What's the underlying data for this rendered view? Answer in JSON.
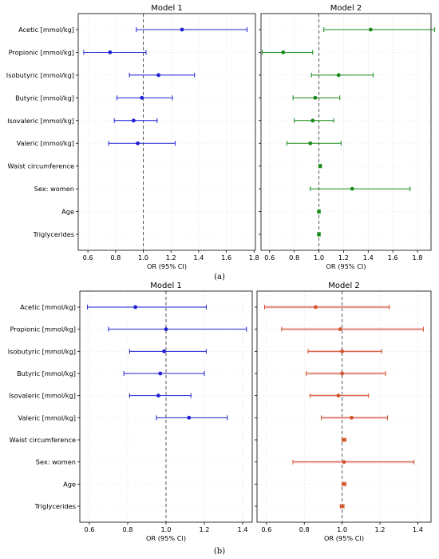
{
  "figure": {
    "caption_a": "(a)",
    "caption_b": "(b)"
  },
  "chart_data": [
    {
      "id": "a1",
      "type": "forest",
      "title": "Model 1",
      "xlabel": "OR (95% CI)",
      "xlim": [
        0.53,
        1.81
      ],
      "xticks": [
        0.6,
        0.8,
        1.0,
        1.2,
        1.4,
        1.6,
        1.8
      ],
      "tick_labels": [
        "0.6",
        "0.8",
        "1.0",
        "1.2",
        "1.4",
        "1.6",
        "1.8"
      ],
      "reference_line": 1.0,
      "color": "#1f1fd6",
      "show_y_labels": true,
      "categories": [
        "Acetic [mmol/kg]",
        "Propionic [mmol/kg]",
        "Isobutyric [mmol/kg]",
        "Butyric [mmol/kg]",
        "Isovaleric [mmol/kg]",
        "Valeric [mmol/kg]",
        "Waist circumference",
        "Sex: women",
        "Age",
        "Triglycerides"
      ],
      "points": [
        {
          "or": 1.28,
          "lo": 0.95,
          "hi": 1.75
        },
        {
          "or": 0.76,
          "lo": 0.57,
          "hi": 1.02
        },
        {
          "or": 1.11,
          "lo": 0.9,
          "hi": 1.37
        },
        {
          "or": 0.99,
          "lo": 0.81,
          "hi": 1.21
        },
        {
          "or": 0.93,
          "lo": 0.79,
          "hi": 1.1
        },
        {
          "or": 0.96,
          "lo": 0.75,
          "hi": 1.23
        },
        null,
        null,
        null,
        null
      ]
    },
    {
      "id": "a2",
      "type": "forest",
      "title": "Model 2",
      "xlabel": "OR (95% CI)",
      "xlim": [
        0.53,
        1.91
      ],
      "xticks": [
        0.6,
        0.8,
        1.0,
        1.2,
        1.4,
        1.6,
        1.8
      ],
      "tick_labels": [
        "0.6",
        "0.8",
        "1.0",
        "1.2",
        "1.4",
        "1.6",
        "1.8"
      ],
      "reference_line": 1.0,
      "color": "#178a17",
      "show_y_labels": false,
      "categories": [
        "Acetic [mmol/kg]",
        "Propionic [mmol/kg]",
        "Isobutyric [mmol/kg]",
        "Butyric [mmol/kg]",
        "Isovaleric [mmol/kg]",
        "Valeric [mmol/kg]",
        "Waist circumference",
        "Sex: women",
        "Age",
        "Triglycerides"
      ],
      "points": [
        {
          "or": 1.42,
          "lo": 1.04,
          "hi": 1.94
        },
        {
          "or": 0.71,
          "lo": 0.54,
          "hi": 0.95
        },
        {
          "or": 1.16,
          "lo": 0.94,
          "hi": 1.44
        },
        {
          "or": 0.97,
          "lo": 0.79,
          "hi": 1.17
        },
        {
          "or": 0.95,
          "lo": 0.8,
          "hi": 1.12
        },
        {
          "or": 0.93,
          "lo": 0.74,
          "hi": 1.18
        },
        {
          "or": 1.01,
          "lo": 1.0,
          "hi": 1.02
        },
        {
          "or": 1.27,
          "lo": 0.93,
          "hi": 1.74
        },
        {
          "or": 1.0,
          "lo": 0.99,
          "hi": 1.01
        },
        {
          "or": 1.0,
          "lo": 0.99,
          "hi": 1.01
        }
      ]
    },
    {
      "id": "b1",
      "type": "forest",
      "title": "Model 1",
      "xlabel": "OR (95% CI)",
      "xlim": [
        0.55,
        1.45
      ],
      "xticks": [
        0.6,
        0.8,
        1.0,
        1.2,
        1.4
      ],
      "tick_labels": [
        "0.6",
        "0.8",
        "1.0",
        "1.2",
        "1.4"
      ],
      "reference_line": 1.0,
      "color": "#1f1fd6",
      "show_y_labels": true,
      "categories": [
        "Acetic [mmol/kg]",
        "Propionic [mmol/kg]",
        "Isobutyric [mmol/kg]",
        "Butyric [mmol/kg]",
        "Isovaleric [mmol/kg]",
        "Valeric [mmol/kg]",
        "Waist circumference",
        "Sex: women",
        "Age",
        "Triglycerides"
      ],
      "points": [
        {
          "or": 0.84,
          "lo": 0.59,
          "hi": 1.21
        },
        {
          "or": 1.0,
          "lo": 0.7,
          "hi": 1.42
        },
        {
          "or": 0.99,
          "lo": 0.81,
          "hi": 1.21
        },
        {
          "or": 0.97,
          "lo": 0.78,
          "hi": 1.2
        },
        {
          "or": 0.96,
          "lo": 0.81,
          "hi": 1.13
        },
        {
          "or": 1.12,
          "lo": 0.95,
          "hi": 1.32
        },
        null,
        null,
        null,
        null
      ]
    },
    {
      "id": "b2",
      "type": "forest",
      "title": "Model 2",
      "xlabel": "OR (95% CI)",
      "xlim": [
        0.55,
        1.47
      ],
      "xticks": [
        0.6,
        0.8,
        1.0,
        1.2,
        1.4
      ],
      "tick_labels": [
        "0.6",
        "0.8",
        "1.0",
        "1.2",
        "1.4"
      ],
      "reference_line": 1.0,
      "color": "#d2552b",
      "band_color": "#f4c9d6",
      "show_y_labels": false,
      "categories": [
        "Acetic [mmol/kg]",
        "Propionic [mmol/kg]",
        "Isobutyric [mmol/kg]",
        "Butyric [mmol/kg]",
        "Isovaleric [mmol/kg]",
        "Valeric [mmol/kg]",
        "Waist circumference",
        "Sex: women",
        "Age",
        "Triglycerides"
      ],
      "points": [
        {
          "or": 0.86,
          "lo": 0.59,
          "hi": 1.25
        },
        {
          "or": 0.99,
          "lo": 0.68,
          "hi": 1.43
        },
        {
          "or": 1.0,
          "lo": 0.82,
          "hi": 1.21
        },
        {
          "or": 1.0,
          "lo": 0.81,
          "hi": 1.23
        },
        {
          "or": 0.98,
          "lo": 0.83,
          "hi": 1.14
        },
        {
          "or": 1.05,
          "lo": 0.89,
          "hi": 1.24
        },
        {
          "or": 1.01,
          "lo": 1.0,
          "hi": 1.02
        },
        {
          "or": 1.01,
          "lo": 0.74,
          "hi": 1.38
        },
        {
          "or": 1.01,
          "lo": 1.0,
          "hi": 1.02
        },
        {
          "or": 1.0,
          "lo": 0.99,
          "hi": 1.01
        }
      ]
    }
  ]
}
